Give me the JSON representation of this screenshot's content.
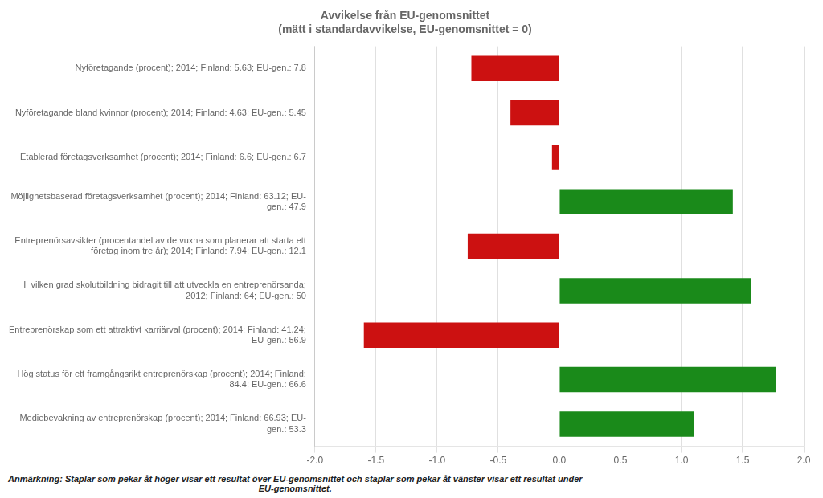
{
  "chart_data": {
    "type": "bar",
    "orientation": "horizontal",
    "title": "Avvikelse från EU-genomsnittet\n(mätt i standardavvikelse, EU-genomsnittet = 0)",
    "categories": [
      "Nyföretagande (procent); 2014; Finland: 5.63; EU-gen.: 7.8",
      "Nyföretagande bland kvinnor (procent); 2014; Finland: 4.63; EU-gen.: 5.45",
      "Etablerad företagsverksamhet (procent); 2014; Finland: 6.6; EU-gen.: 6.7",
      "Möjlighetsbaserad företagsverksamhet (procent); 2014; Finland: 63.12; EU-\ngen.: 47.9",
      "Entreprenörsavsikter (procentandel av de vuxna som planerar att starta ett\nföretag inom tre år); 2014; Finland: 7.94; EU-gen.: 12.1",
      "I  vilken grad skolutbildning bidragit till att utveckla en entreprenörsanda;\n2012; Finland: 64; EU-gen.: 50",
      "Entreprenörskap som ett attraktivt karriärval (procent); 2014; Finland: 41.24;\nEU-gen.: 56.9",
      "Hög status för ett framgångsrikt entreprenörskap (procent); 2014; Finland:\n84.4; EU-gen.: 66.6",
      "Mediebevakning av entreprenörskap (procent); 2014; Finland: 66.93; EU-\ngen.: 53.3"
    ],
    "values": [
      -0.72,
      -0.4,
      -0.06,
      1.42,
      -0.75,
      1.57,
      -1.6,
      1.77,
      1.1
    ],
    "colors": [
      "#cc1111",
      "#cc1111",
      "#cc1111",
      "#1a8a1a",
      "#cc1111",
      "#1a8a1a",
      "#cc1111",
      "#1a8a1a",
      "#1a8a1a"
    ],
    "xlim": [
      -2.0,
      2.0
    ],
    "xticks": [
      {
        "value": -2.0,
        "label": "-2.0"
      },
      {
        "value": -1.5,
        "label": "-1.5"
      },
      {
        "value": -1.0,
        "label": "-1.0"
      },
      {
        "value": -0.5,
        "label": "-0.5"
      },
      {
        "value": 0.0,
        "label": "0.0"
      },
      {
        "value": 0.5,
        "label": "0.5"
      },
      {
        "value": 1.0,
        "label": "1.0"
      },
      {
        "value": 1.5,
        "label": "1.5"
      },
      {
        "value": 2.0,
        "label": "2.0"
      }
    ],
    "grid": true,
    "annotations": [
      "Anmärkning: Staplar som pekar åt höger visar ett resultat över EU-genomsnittet och staplar som pekar åt vänster visar ett resultat under\nEU-genomsnittet."
    ]
  }
}
